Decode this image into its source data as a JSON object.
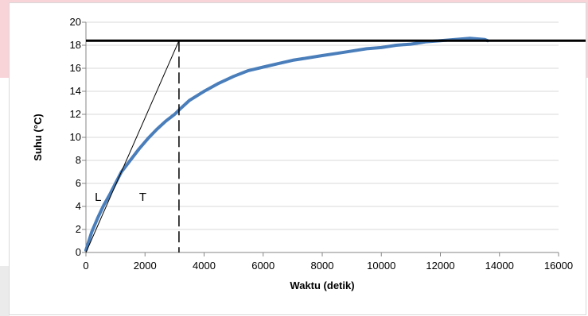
{
  "chart_data": {
    "type": "line",
    "title": "",
    "xlabel": "Waktu (detik)",
    "ylabel": "Suhu (°C)",
    "xlim": [
      0,
      16000
    ],
    "ylim": [
      0,
      20
    ],
    "xticks": [
      "0",
      "2000",
      "4000",
      "6000",
      "8000",
      "10000",
      "12000",
      "14000",
      "16000"
    ],
    "yticks": [
      "0",
      "2",
      "4",
      "6",
      "8",
      "10",
      "12",
      "14",
      "16",
      "18",
      "20"
    ],
    "grid": true,
    "legend": "none",
    "series": [
      {
        "color": "#4a7ebb",
        "x": [
          0,
          200,
          400,
          600,
          800,
          1000,
          1200,
          1500,
          1800,
          2100,
          2400,
          2700,
          3000,
          3200,
          3500,
          4000,
          4500,
          5000,
          5500,
          6000,
          6500,
          7000,
          7500,
          8000,
          8500,
          9000,
          9500,
          10000,
          10500,
          11000,
          11500,
          12000,
          12500,
          13000,
          13500,
          13600
        ],
        "y": [
          0.2,
          1.8,
          3.0,
          4.1,
          5.0,
          6.0,
          7.0,
          8.0,
          9.0,
          9.9,
          10.7,
          11.4,
          12.0,
          12.5,
          13.2,
          14.0,
          14.7,
          15.3,
          15.8,
          16.1,
          16.4,
          16.7,
          16.9,
          17.1,
          17.3,
          17.5,
          17.7,
          17.8,
          18.0,
          18.1,
          18.3,
          18.4,
          18.5,
          18.6,
          18.5,
          18.4
        ]
      }
    ],
    "reference_lines": {
      "final_value": 18.4,
      "tangent_from": [
        0,
        0
      ],
      "tangent_to": [
        3150,
        18.4
      ],
      "vertical_at": 3150
    },
    "annotations": [
      {
        "text": "L",
        "x": 300,
        "y": 4.5
      },
      {
        "text": "T",
        "x": 1800,
        "y": 4.5
      }
    ]
  }
}
